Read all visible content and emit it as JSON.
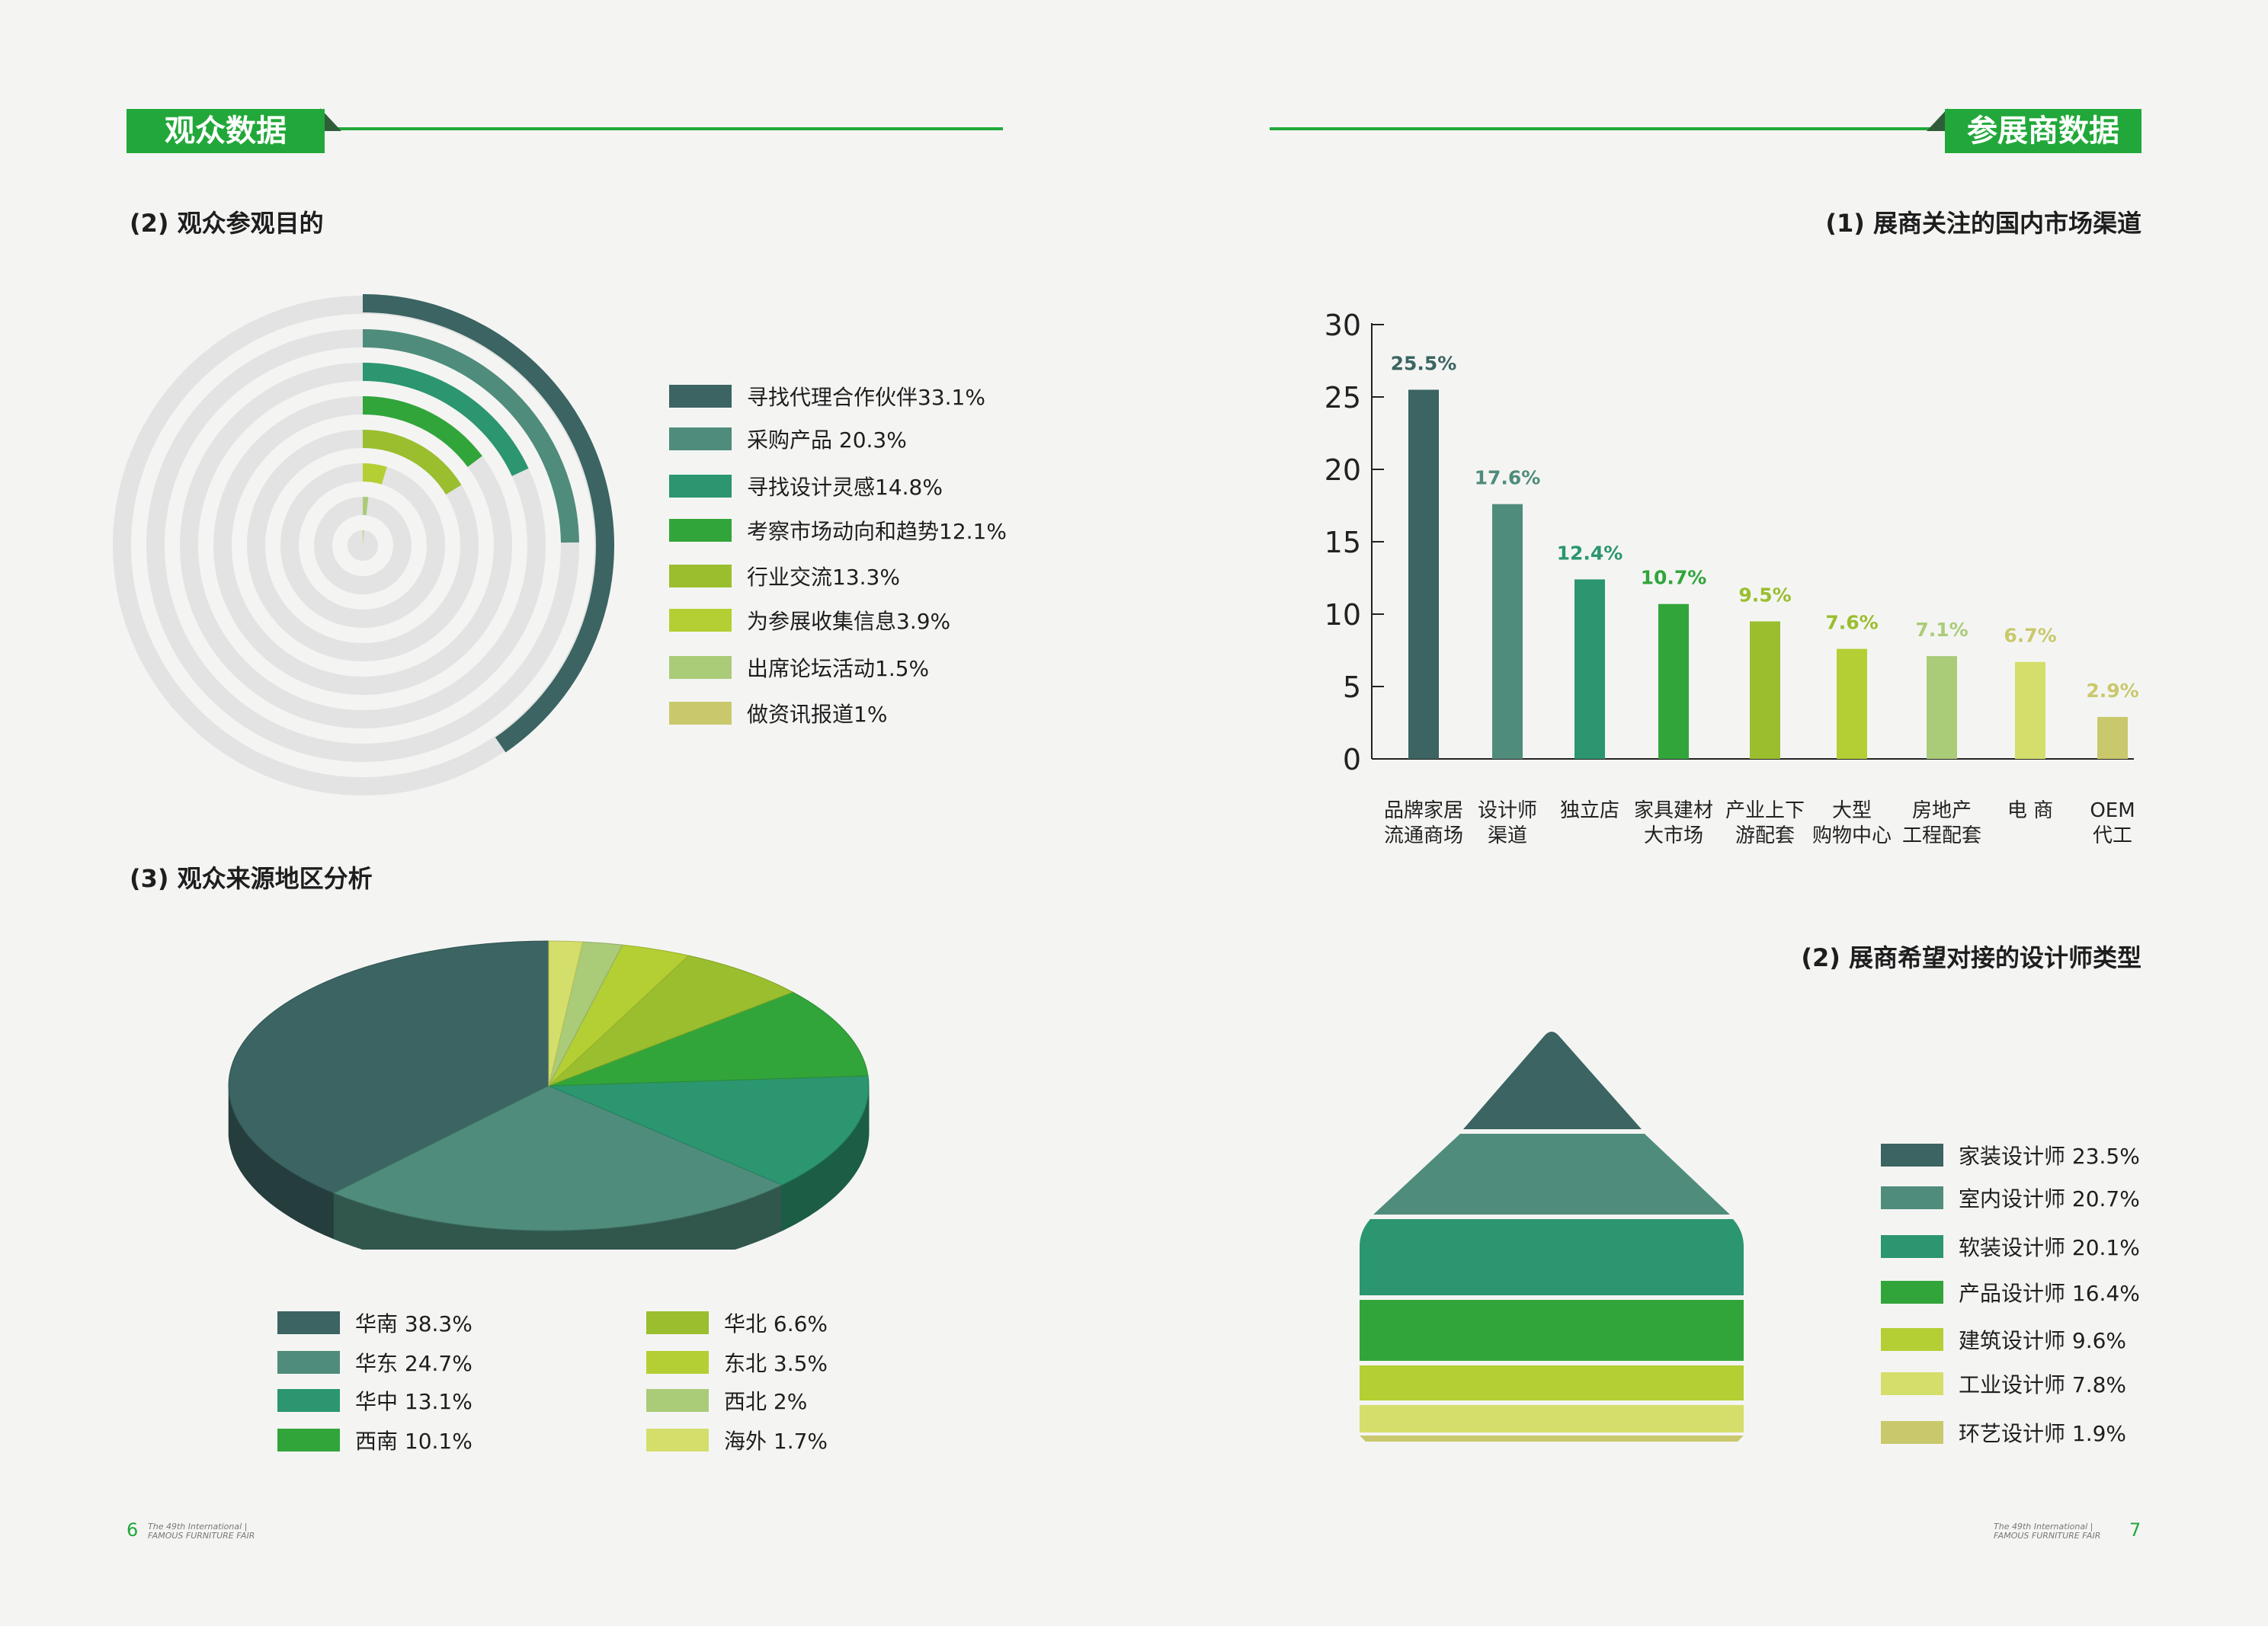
{
  "left_page": {
    "section_title": "观众数据",
    "chart2_title": "(2) 观众参观目的",
    "chart3_title": "(3) 观众来源地区分析",
    "page_number": "6",
    "brand": "The 49th International | FAMOUS FURNITURE FAIR"
  },
  "right_page": {
    "section_title": "参展商数据",
    "chart1_title": "(1) 展商关注的国内市场渠道",
    "chart2_title": "(2) 展商希望对接的设计师类型",
    "page_number": "7",
    "brand": "The 49th International | FAMOUS FURNITURE FAIR"
  },
  "colors": {
    "accent": "#22a83a",
    "c1": "#3b6462",
    "c2": "#4f8c7c",
    "c3": "#2b9670",
    "c4": "#32a53a",
    "c5": "#9abe2e",
    "c6": "#b4cf34",
    "c7": "#aacb78",
    "c8": "#c9c86c",
    "track": "#e2e3e2"
  },
  "chart_data": [
    {
      "type": "radial-bar",
      "title": "(2) 观众参观目的",
      "series": [
        {
          "name": "寻找代理合作伙伴33.1%",
          "value": 33.1,
          "color": "#3b6462"
        },
        {
          "name": "采购产品 20.3%",
          "value": 20.3,
          "color": "#4f8c7c"
        },
        {
          "name": "寻找设计灵感14.8%",
          "value": 14.8,
          "color": "#2b9670"
        },
        {
          "name": "考察市场动向和趋势12.1%",
          "value": 12.1,
          "color": "#32a53a"
        },
        {
          "name": "行业交流13.3%",
          "value": 13.3,
          "color": "#9abe2e"
        },
        {
          "name": "为参展收集信息3.9%",
          "value": 3.9,
          "color": "#b4cf34"
        },
        {
          "name": "出席论坛活动1.5%",
          "value": 1.5,
          "color": "#aacb78"
        },
        {
          "name": "做资讯报道1%",
          "value": 1.0,
          "color": "#c9c86c"
        }
      ]
    },
    {
      "type": "pie",
      "title": "(3) 观众来源地区分析",
      "series": [
        {
          "name": "华南 38.3%",
          "value": 38.3,
          "color": "#3b6462"
        },
        {
          "name": "华东 24.7%",
          "value": 24.7,
          "color": "#4f8c7c"
        },
        {
          "name": "华中 13.1%",
          "value": 13.1,
          "color": "#2b9670"
        },
        {
          "name": "西南 10.1%",
          "value": 10.1,
          "color": "#32a53a"
        },
        {
          "name": "华北 6.6%",
          "value": 6.6,
          "color": "#9abe2e"
        },
        {
          "name": "东北 3.5%",
          "value": 3.5,
          "color": "#b4cf34"
        },
        {
          "name": "西北 2%",
          "value": 2.0,
          "color": "#aacb78"
        },
        {
          "name": "海外 1.7%",
          "value": 1.7,
          "color": "#d4de6a"
        }
      ]
    },
    {
      "type": "bar",
      "title": "(1) 展商关注的国内市场渠道",
      "categories": [
        [
          "品牌家居",
          "流通商场"
        ],
        [
          "设计师",
          "渠道"
        ],
        [
          "独立店"
        ],
        [
          "家具建材",
          "大市场"
        ],
        [
          "产业上下",
          "游配套"
        ],
        [
          "大型",
          "购物中心"
        ],
        [
          "房地产",
          "工程配套"
        ],
        [
          "电 商"
        ],
        [
          "OEM",
          "代工"
        ]
      ],
      "values": [
        25.5,
        17.6,
        12.4,
        10.7,
        9.5,
        7.6,
        7.1,
        6.7,
        2.9
      ],
      "labels": [
        "25.5%",
        "17.6%",
        "12.4%",
        "10.7%",
        "9.5%",
        "7.6%",
        "7.1%",
        "6.7%",
        "2.9%"
      ],
      "colors": [
        "#3b6462",
        "#4f8c7c",
        "#2b9670",
        "#32a53a",
        "#9abe2e",
        "#b4cf34",
        "#aacb78",
        "#d4de6a",
        "#c9c86c"
      ],
      "label_colors": [
        "#3b6462",
        "#4f8c7c",
        "#2b9670",
        "#32a53a",
        "#9abe2e",
        "#9abe2e",
        "#aacb78",
        "#c9c86c",
        "#c9c86c"
      ],
      "ylim": [
        0,
        30
      ],
      "yticks": [
        0,
        5,
        10,
        15,
        20,
        25,
        30
      ]
    },
    {
      "type": "pyramid",
      "title": "(2) 展商希望对接的设计师类型",
      "series": [
        {
          "name": "家装设计师 23.5%",
          "value": 23.5,
          "color": "#3b6462"
        },
        {
          "name": "室内设计师 20.7%",
          "value": 20.7,
          "color": "#4f8c7c"
        },
        {
          "name": "软装设计师 20.1%",
          "value": 20.1,
          "color": "#2b9670"
        },
        {
          "name": "产品设计师 16.4%",
          "value": 16.4,
          "color": "#32a53a"
        },
        {
          "name": "建筑设计师 9.6%",
          "value": 9.6,
          "color": "#b4cf34"
        },
        {
          "name": "工业设计师 7.8%",
          "value": 7.8,
          "color": "#d4de6a"
        },
        {
          "name": "环艺设计师 1.9%",
          "value": 1.9,
          "color": "#c9c86c"
        }
      ]
    }
  ]
}
